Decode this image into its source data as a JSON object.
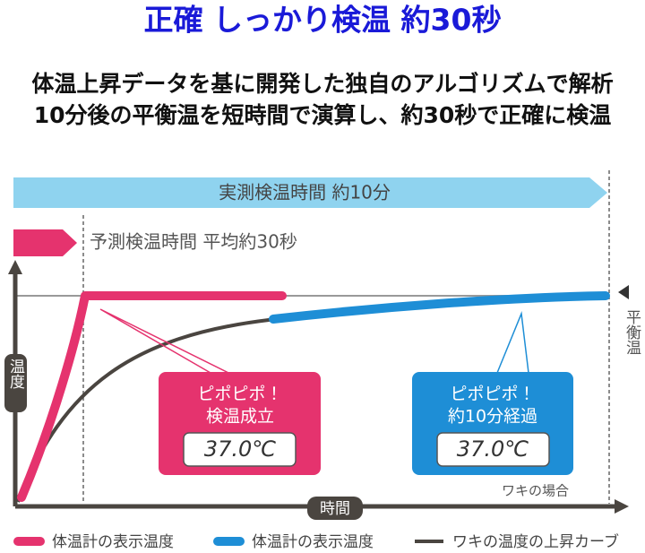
{
  "header": {
    "title": "正確 しっかり検温 約30秒",
    "description": [
      "体温上昇データを基に開発した独自のアルゴリズムで解析",
      "10分後の平衡温を短時間で演算し、約30秒で正確に検温"
    ]
  },
  "diagram": {
    "measured_banner": "実測検温時間 約10分",
    "predicted_banner": "予測検温時間 平均約30秒",
    "y_axis_label": "温度",
    "x_axis_label": "時間",
    "equilibrium_label": "平衡温",
    "predicted_callout": {
      "chime": "ピポピポ！",
      "status": "検温成立",
      "reading": "37.0℃"
    },
    "measured_callout": {
      "chime": "ピポピポ！",
      "status": "約10分経過",
      "reading": "37.0℃"
    },
    "site_note": "ワキの場合"
  },
  "legend": [
    "体温計の表示温度",
    "体温計の表示温度",
    "ワキの温度の上昇カーブ"
  ]
}
